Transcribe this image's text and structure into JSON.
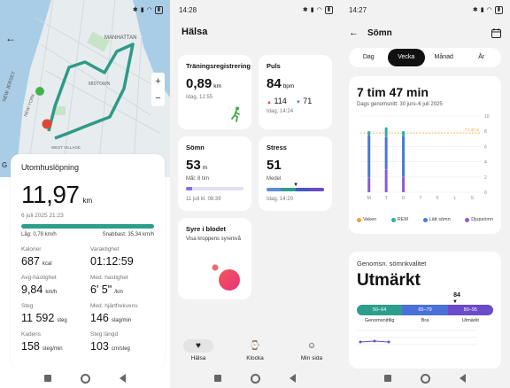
{
  "run": {
    "status_time": "",
    "card_title": "Utomhuslöpning",
    "distance": "11,97",
    "distance_unit": "km",
    "date": "6 juli 2025 21:23",
    "slowest": "Låg: 0,78 km/h",
    "fastest": "Snabbast: 35,34 km/h",
    "map_labels": [
      "MANHATTAN",
      "NEW JERSEY",
      "MIDTOWN",
      "NEW YORK",
      "WEST VILLAGE"
    ],
    "stats": [
      {
        "label": "Kalorier",
        "value": "687",
        "unit": "kcal"
      },
      {
        "label": "Varaktighet",
        "value": "01:12:59",
        "unit": ""
      },
      {
        "label": "Avg-hastighet",
        "value": "9,84",
        "unit": "km/h"
      },
      {
        "label": "Med. hastighet",
        "value": "6' 5\"",
        "unit": "/km"
      },
      {
        "label": "Steg",
        "value": "11 592",
        "unit": "steg"
      },
      {
        "label": "Med. hjärtfrekvens",
        "value": "146",
        "unit": "slag/min"
      },
      {
        "label": "Kadens",
        "value": "158",
        "unit": "steg/min"
      },
      {
        "label": "Steg längd",
        "value": "103",
        "unit": "cm/steg"
      }
    ]
  },
  "health": {
    "status_time": "14:28",
    "title": "Hälsa",
    "training": {
      "title": "Träningsregistrering",
      "value": "0,89",
      "unit": "km",
      "time": "Idag, 12:55"
    },
    "pulse": {
      "title": "Puls",
      "value": "84",
      "unit": "bpm",
      "high": "114",
      "low": "71",
      "time": "Idag, 14:24"
    },
    "sleep": {
      "title": "Sömn",
      "value": "53",
      "unit": "m",
      "goal": "Mål: 8 tim",
      "time": "11 juli kl. 08:39",
      "progress": 0.11
    },
    "stress": {
      "title": "Stress",
      "value": "51",
      "level": "Medel",
      "time": "Idag, 14:20",
      "marker": 0.51
    },
    "oxygen": {
      "title": "Syre i blodet",
      "desc": "Visa kroppens syrenivå"
    },
    "tabs": [
      {
        "label": "Hälsa",
        "icon": "heart-icon"
      },
      {
        "label": "Klocka",
        "icon": "watch-icon"
      },
      {
        "label": "Min sida",
        "icon": "person-icon"
      }
    ]
  },
  "sleep": {
    "status_time": "14:27",
    "title": "Sömn",
    "segments": [
      "Dag",
      "Vecka",
      "Månad",
      "År"
    ],
    "active_segment": 1,
    "duration": "7 tim 47 min",
    "subtitle": "Dags genomsnitt: 30 juni–6 juli 2025",
    "quality_title": "Genomsn. sömnkvalitet",
    "quality_value": "Utmärkt",
    "score": "84",
    "bands": [
      {
        "range": "50–64",
        "label": "Genomsnittlig",
        "color": "#2e9e8c"
      },
      {
        "range": "65–79",
        "label": "Bra",
        "color": "#4a70d8"
      },
      {
        "range": "80–95",
        "label": "Utmärkt",
        "color": "#6a4bc9"
      }
    ]
  },
  "chart_data": {
    "type": "bar",
    "stacked": true,
    "categories": [
      "M",
      "T",
      "O",
      "T",
      "F",
      "L",
      "S"
    ],
    "avg_line_label": "7 h 47 m",
    "avg_line_value": 7.78,
    "ylim": [
      0,
      10
    ],
    "yticks": [
      0,
      2,
      4,
      6,
      8,
      10
    ],
    "series": [
      {
        "name": "Vaken",
        "color": "#f0a030",
        "values": [
          0,
          0,
          0,
          0,
          0,
          0,
          0
        ]
      },
      {
        "name": "REM",
        "color": "#2eb0a0",
        "values": [
          0.3,
          1.0,
          0.4,
          0,
          0,
          0,
          0
        ]
      },
      {
        "name": "Lätt sömn",
        "color": "#4a78d8",
        "values": [
          5.6,
          4.3,
          5.4,
          0,
          0,
          0,
          0
        ]
      },
      {
        "name": "Djupsömn",
        "color": "#8a5cd8",
        "values": [
          1.9,
          3.0,
          2.0,
          0,
          0,
          0,
          0
        ]
      }
    ]
  }
}
